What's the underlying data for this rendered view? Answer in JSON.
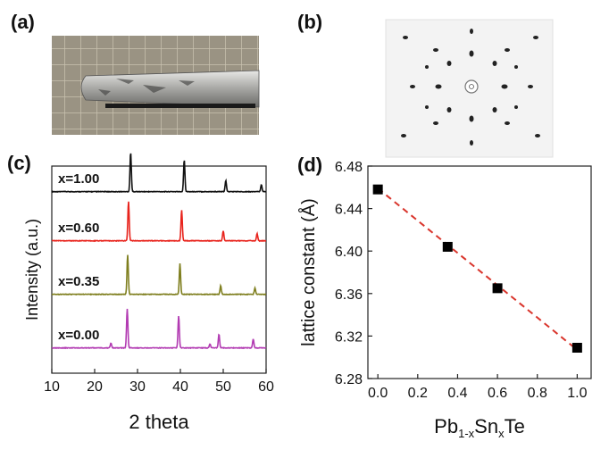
{
  "panel_labels": {
    "a": "(a)",
    "b": "(b)",
    "c": "(c)",
    "d": "(d)"
  },
  "chart_data": [
    {
      "panel": "(c)",
      "type": "line",
      "xlabel": "2 theta",
      "ylabel": "Intensity (a.u.)",
      "xlim": [
        10,
        60
      ],
      "xticks": [
        "10",
        "20",
        "30",
        "40",
        "50",
        "60"
      ],
      "grid": false,
      "series": [
        {
          "name": "x=1.00",
          "color": "#111111",
          "peaks": [
            [
              28.4,
              1.0
            ],
            [
              40.9,
              0.82
            ],
            [
              50.6,
              0.28
            ],
            [
              58.9,
              0.18
            ]
          ]
        },
        {
          "name": "x=0.60",
          "color": "#e8231c",
          "peaks": [
            [
              27.9,
              1.0
            ],
            [
              40.3,
              0.78
            ],
            [
              50.0,
              0.25
            ],
            [
              57.9,
              0.18
            ]
          ]
        },
        {
          "name": "x=0.35",
          "color": "#7f7f1f",
          "peaks": [
            [
              27.7,
              1.0
            ],
            [
              39.9,
              0.78
            ],
            [
              49.4,
              0.22
            ],
            [
              57.4,
              0.16
            ]
          ]
        },
        {
          "name": "x=0.00",
          "color": "#b23bb2",
          "peaks": [
            [
              23.8,
              0.12
            ],
            [
              27.6,
              1.0
            ],
            [
              39.6,
              0.82
            ],
            [
              46.9,
              0.1
            ],
            [
              49.0,
              0.35
            ],
            [
              57.0,
              0.22
            ]
          ]
        }
      ]
    },
    {
      "panel": "(d)",
      "type": "scatter",
      "xlabel": "Pb",
      "xlabel_sub1": "1-x",
      "xlabel_mid": "Sn",
      "xlabel_sub2": "x",
      "xlabel_end": "Te",
      "ylabel": "lattice constant (Å)",
      "xlim": [
        -0.05,
        1.07
      ],
      "ylim": [
        6.28,
        6.48
      ],
      "xticks": [
        "0.0",
        "0.2",
        "0.4",
        "0.6",
        "0.8",
        "1.0"
      ],
      "yticks": [
        "6.28",
        "6.32",
        "6.36",
        "6.40",
        "6.44",
        "6.48"
      ],
      "grid": false,
      "points": [
        {
          "x": 0.0,
          "y": 6.458
        },
        {
          "x": 0.35,
          "y": 6.404
        },
        {
          "x": 0.6,
          "y": 6.365
        },
        {
          "x": 1.0,
          "y": 6.309
        }
      ],
      "fit_line": {
        "x": [
          0.0,
          1.0
        ],
        "y": [
          6.459,
          6.307
        ],
        "color": "#d9342b",
        "style": "dashed"
      },
      "marker_color": "#000000"
    }
  ]
}
